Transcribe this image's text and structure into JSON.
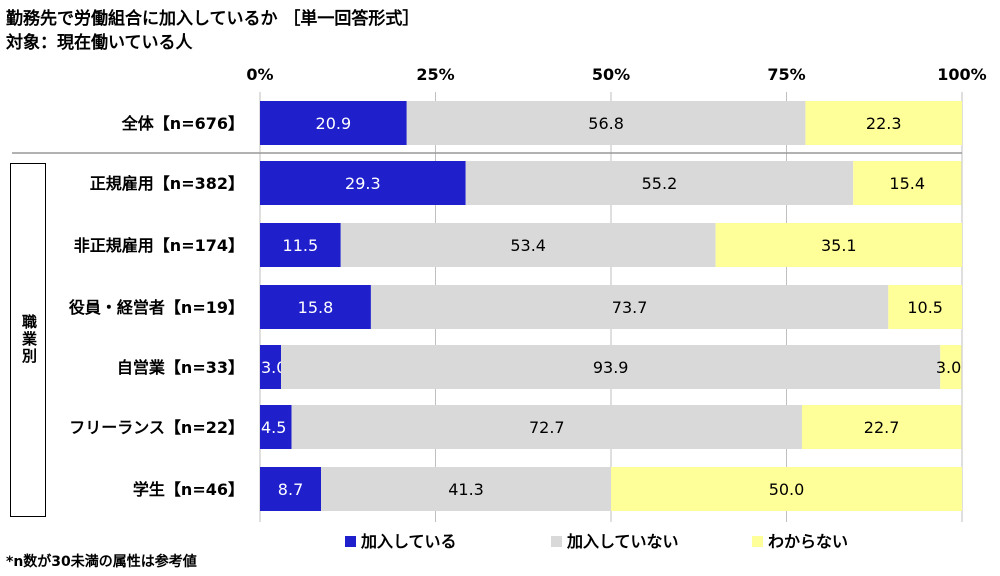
{
  "title": "勤務先で労働組合に加入しているか ［単一回答形式］",
  "subtitle": "対象：現在働いている人",
  "footnote": "*n数が30未満の属性は参考値",
  "group_label": "職業別",
  "colors": {
    "joined": "#1f1fcc",
    "not_joined": "#d9d9d9",
    "unknown": "#ffff99",
    "grid": "#bfbfbf"
  },
  "chart_data": {
    "type": "bar",
    "orientation": "horizontal",
    "stacked": true,
    "xlim": [
      0,
      100
    ],
    "x_ticks": [
      "0%",
      "25%",
      "50%",
      "75%",
      "100%"
    ],
    "categories": [
      "全体【n=676】",
      "正規雇用【n=382】",
      "非正規雇用【n=174】",
      "役員・経営者【n=19】",
      "自営業【n=33】",
      "フリーランス【n=22】",
      "学生【n=46】"
    ],
    "series": [
      {
        "name": "加入している",
        "values": [
          20.9,
          29.3,
          11.5,
          15.8,
          3.0,
          4.5,
          8.7
        ]
      },
      {
        "name": "加入していない",
        "values": [
          56.8,
          55.2,
          53.4,
          73.7,
          93.9,
          72.7,
          41.3
        ]
      },
      {
        "name": "わからない",
        "values": [
          22.3,
          15.4,
          35.1,
          10.5,
          3.0,
          22.7,
          50.0
        ]
      }
    ],
    "data_labels": [
      [
        "20.9",
        "56.8",
        "22.3"
      ],
      [
        "29.3",
        "55.2",
        "15.4"
      ],
      [
        "11.5",
        "53.4",
        "35.1"
      ],
      [
        "15.8",
        "73.7",
        "10.5"
      ],
      [
        "3.0",
        "93.9",
        "3.0"
      ],
      [
        "4.5",
        "72.7",
        "22.7"
      ],
      [
        "8.7",
        "41.3",
        "50.0"
      ]
    ],
    "legend_position": "bottom"
  }
}
